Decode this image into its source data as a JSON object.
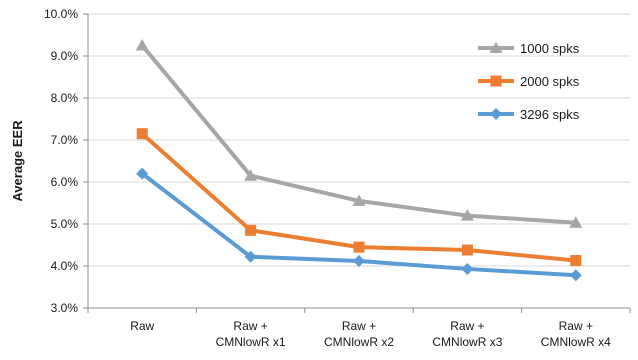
{
  "chart_data": {
    "type": "line",
    "ylabel": "Average EER",
    "xlabel": "",
    "title": "",
    "ylim": [
      3.0,
      10.0
    ],
    "ytick_step": 1.0,
    "ytick_labels": [
      "3.0%",
      "4.0%",
      "5.0%",
      "6.0%",
      "7.0%",
      "8.0%",
      "9.0%",
      "10.0%"
    ],
    "grid": true,
    "legend_position": "top-right",
    "categories": [
      [
        "Raw"
      ],
      [
        "Raw +",
        "CMNlowR x1"
      ],
      [
        "Raw +",
        "CMNlowR x2"
      ],
      [
        "Raw +",
        "CMNlowR x3"
      ],
      [
        "Raw +",
        "CMNlowR x4"
      ]
    ],
    "series": [
      {
        "name": "1000 spks",
        "color": "#a6a6a6",
        "marker": "triangle",
        "values": [
          9.25,
          6.15,
          5.55,
          5.2,
          5.03
        ]
      },
      {
        "name": "2000 spks",
        "color": "#ed7d31",
        "marker": "square",
        "values": [
          7.15,
          4.85,
          4.45,
          4.38,
          4.13
        ]
      },
      {
        "name": "3296 spks",
        "color": "#5b9bd5",
        "marker": "diamond",
        "values": [
          6.2,
          4.22,
          4.12,
          3.93,
          3.78
        ]
      }
    ]
  }
}
